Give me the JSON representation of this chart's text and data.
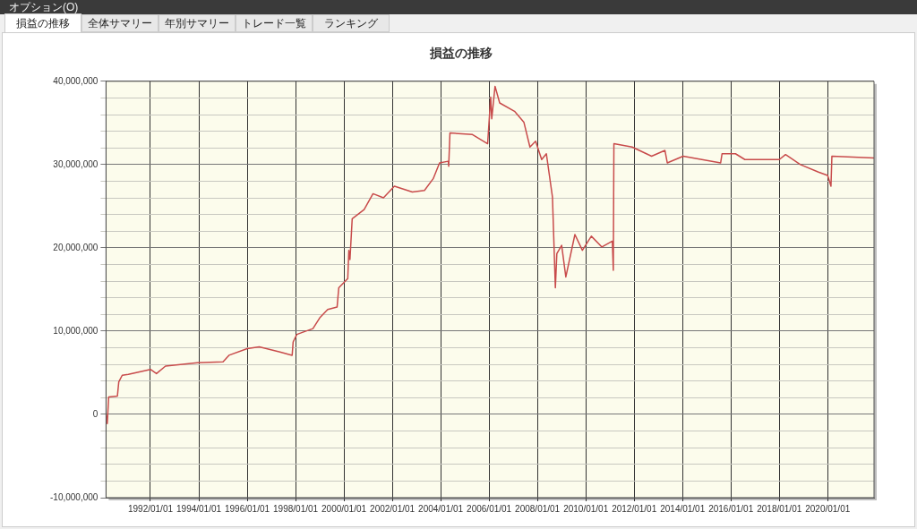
{
  "chart_data": {
    "type": "line",
    "title": "損益の推移",
    "annotations": [
      "オプション(O)",
      "損益の推移",
      "全体サマリー",
      "年別サマリー",
      "トレード一覧",
      "ランキング"
    ],
    "x": [
      "1990-03-01",
      "1990-03-20",
      "1990-04-10",
      "1990-08-20",
      "1990-09-10",
      "1990-11-01",
      "1991-02-01",
      "1992-01-01",
      "1992-04-01",
      "1992-08-15",
      "1993-12-10",
      "1995-01-01",
      "1995-04-01",
      "1996-01-01",
      "1996-07-01",
      "1997-05-10",
      "1997-11-10",
      "1997-11-25",
      "1998-01-20",
      "1998-05-01",
      "1998-09-20",
      "1999-01-01",
      "1999-05-01",
      "1999-09-20",
      "1999-10-15",
      "2000-02-28",
      "2000-03-15",
      "2000-04-01",
      "2000-05-05",
      "2000-11-01",
      "2001-03-15",
      "2001-08-20",
      "2002-02-01",
      "2002-10-30",
      "2003-05-01",
      "2003-09-10",
      "2003-12-15",
      "2004-04-25",
      "2004-05-01",
      "2004-05-20",
      "2005-04-25",
      "2005-12-10",
      "2006-01-25",
      "2006-02-10",
      "2006-04-01",
      "2006-06-10",
      "2007-01-20",
      "2007-06-10",
      "2007-09-10",
      "2007-12-05",
      "2008-03-05",
      "2008-05-15",
      "2008-08-15",
      "2008-09-28",
      "2008-10-20",
      "2009-01-01",
      "2009-03-05",
      "2009-07-20",
      "2009-11-10",
      "2010-03-25",
      "2010-09-01",
      "2011-02-05",
      "2011-02-20",
      "2011-03-01",
      "2011-12-01",
      "2012-09-20",
      "2013-04-10",
      "2013-05-15",
      "2014-01-10",
      "2015-07-30",
      "2015-08-20",
      "2016-03-10",
      "2016-07-30",
      "2018-01-01",
      "2018-04-05",
      "2018-11-15",
      "2019-08-15",
      "2020-01-01",
      "2020-02-20",
      "2020-03-05",
      "2021-12-01"
    ],
    "series": [
      {
        "color": "#c84b4b",
        "values": [
          0,
          -1100000,
          2100000,
          2200000,
          3900000,
          4700000,
          4800000,
          5400000,
          4900000,
          5800000,
          6200000,
          6300000,
          7100000,
          7900000,
          8100000,
          7500000,
          7100000,
          8700000,
          9600000,
          9900000,
          10300000,
          11600000,
          12600000,
          12900000,
          15200000,
          16300000,
          19700000,
          18600000,
          23500000,
          24600000,
          26500000,
          26000000,
          27400000,
          26700000,
          26900000,
          28300000,
          30200000,
          30400000,
          29800000,
          33800000,
          33600000,
          32500000,
          38100000,
          35500000,
          39400000,
          37400000,
          36400000,
          35100000,
          32100000,
          32800000,
          30600000,
          31300000,
          26100000,
          15200000,
          19300000,
          20300000,
          16500000,
          21600000,
          19700000,
          21400000,
          20100000,
          20800000,
          17300000,
          32500000,
          32100000,
          31000000,
          31700000,
          30200000,
          31000000,
          30200000,
          31300000,
          31300000,
          30600000,
          30600000,
          31200000,
          30000000,
          29100000,
          28700000,
          27400000,
          31000000,
          30800000
        ]
      }
    ],
    "xlim": [
      "1990-03-01",
      "2021-12-01"
    ],
    "xticks": [
      {
        "value": "1992-01-01",
        "label": "1992/01/01"
      },
      {
        "value": "1994-01-01",
        "label": "1994/01/01"
      },
      {
        "value": "1996-01-01",
        "label": "1996/01/01"
      },
      {
        "value": "1998-01-01",
        "label": "1998/01/01"
      },
      {
        "value": "2000-01-01",
        "label": "2000/01/01"
      },
      {
        "value": "2002-01-01",
        "label": "2002/01/01"
      },
      {
        "value": "2004-01-01",
        "label": "2004/01/01"
      },
      {
        "value": "2006-01-01",
        "label": "2006/01/01"
      },
      {
        "value": "2008-01-01",
        "label": "2008/01/01"
      },
      {
        "value": "2010-01-01",
        "label": "2010/01/01"
      },
      {
        "value": "2012-01-01",
        "label": "2012/01/01"
      },
      {
        "value": "2014-01-01",
        "label": "2014/01/01"
      },
      {
        "value": "2016-01-01",
        "label": "2016/01/01"
      },
      {
        "value": "2018-01-01",
        "label": "2018/01/01"
      },
      {
        "value": "2020-01-01",
        "label": "2020/01/01"
      }
    ],
    "ylim": [
      -10000000,
      40000000
    ],
    "yticks": [
      {
        "value": -10000000,
        "label": "-10,000,000"
      },
      {
        "value": -8000000,
        "label": null
      },
      {
        "value": -6000000,
        "label": null
      },
      {
        "value": -4000000,
        "label": null
      },
      {
        "value": -2000000,
        "label": null
      },
      {
        "value": 0,
        "label": "0"
      },
      {
        "value": 2000000,
        "label": null
      },
      {
        "value": 4000000,
        "label": null
      },
      {
        "value": 6000000,
        "label": null
      },
      {
        "value": 8000000,
        "label": null
      },
      {
        "value": 10000000,
        "label": "10,000,000"
      },
      {
        "value": 12000000,
        "label": null
      },
      {
        "value": 14000000,
        "label": null
      },
      {
        "value": 16000000,
        "label": null
      },
      {
        "value": 18000000,
        "label": null
      },
      {
        "value": 20000000,
        "label": "20,000,000"
      },
      {
        "value": 22000000,
        "label": null
      },
      {
        "value": 24000000,
        "label": null
      },
      {
        "value": 26000000,
        "label": null
      },
      {
        "value": 28000000,
        "label": null
      },
      {
        "value": 30000000,
        "label": "30,000,000"
      },
      {
        "value": 32000000,
        "label": null
      },
      {
        "value": 34000000,
        "label": null
      },
      {
        "value": 36000000,
        "label": null
      },
      {
        "value": 38000000,
        "label": null
      },
      {
        "value": 40000000,
        "label": "40,000,000"
      }
    ],
    "grid": true,
    "legend": false
  }
}
